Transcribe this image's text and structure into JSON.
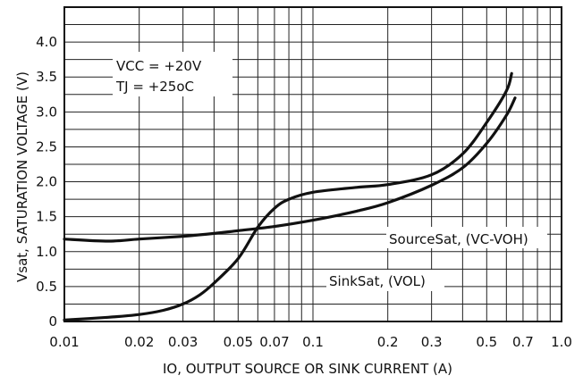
{
  "chart_data": {
    "type": "line",
    "xlabel": "IO, OUTPUT SOURCE OR SINK CURRENT (A)",
    "ylabel": "Vsat, SATURATION VOLTAGE (V)",
    "x_scale": "log",
    "xlim": [
      0.01,
      1.0
    ],
    "ylim": [
      0,
      4.5
    ],
    "grid": true,
    "x_tick_labels": [
      "0.01",
      "0.02",
      "0.03",
      "0.05",
      "0.07",
      "0.1",
      "0.2",
      "0.3",
      "0.5",
      "0.7",
      "1.0"
    ],
    "y_tick_labels": [
      "0",
      "0.5",
      "1.0",
      "1.5",
      "2.0",
      "2.5",
      "3.0",
      "3.5",
      "4.0"
    ],
    "annotations": {
      "vcc": "VCC = +20V",
      "tj": "TJ = +25oC"
    },
    "series": [
      {
        "name": "SourceSat, (VC-VOH)",
        "x": [
          0.01,
          0.015,
          0.02,
          0.03,
          0.04,
          0.05,
          0.07,
          0.1,
          0.15,
          0.2,
          0.3,
          0.4,
          0.5,
          0.6,
          0.65
        ],
        "y": [
          1.18,
          1.15,
          1.18,
          1.22,
          1.26,
          1.3,
          1.36,
          1.45,
          1.58,
          1.7,
          1.95,
          2.2,
          2.55,
          2.95,
          3.2
        ]
      },
      {
        "name": "SinkSat, (VOL)",
        "x": [
          0.01,
          0.015,
          0.02,
          0.025,
          0.03,
          0.035,
          0.04,
          0.05,
          0.06,
          0.07,
          0.08,
          0.1,
          0.15,
          0.2,
          0.3,
          0.4,
          0.5,
          0.6,
          0.63
        ],
        "y": [
          0.02,
          0.06,
          0.1,
          0.16,
          0.25,
          0.38,
          0.55,
          0.9,
          1.35,
          1.62,
          1.75,
          1.85,
          1.92,
          1.96,
          2.1,
          2.4,
          2.85,
          3.3,
          3.55
        ]
      }
    ]
  }
}
